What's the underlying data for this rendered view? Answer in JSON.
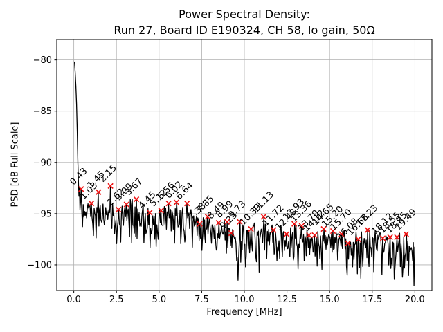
{
  "title": {
    "line1": "Power Spectral Density:",
    "line2": "Run 27, Board ID E190324, CH 58, lo gain, 50Ω"
  },
  "chart_data": {
    "type": "line",
    "title": "Power Spectral Density:\nRun 27, Board ID E190324, CH 58, lo gain, 50Ω",
    "xlabel": "Frequency [MHz]",
    "ylabel": "PSD [dB Full Scale]",
    "xlim": [
      -1,
      21
    ],
    "ylim": [
      -102.5,
      -78.0
    ],
    "grid": true,
    "legend": "none",
    "line_color": "#000000",
    "grid_color": "#b0b0b0",
    "marker": {
      "shape": "x",
      "color": "#ee1111"
    },
    "xticks": {
      "values": [
        0,
        2.5,
        5,
        7.5,
        10,
        12.5,
        15,
        17.5,
        20
      ],
      "labels": [
        "0.0",
        "2.5",
        "5.0",
        "7.5",
        "10.0",
        "12.5",
        "15.0",
        "17.5",
        "20.0"
      ]
    },
    "yticks": {
      "values": [
        -80,
        -85,
        -90,
        -95,
        -100
      ],
      "labels": [
        "−80",
        "−85",
        "−90",
        "−95",
        "−100"
      ]
    },
    "spike_head": [
      [
        0.04,
        -80.15
      ],
      [
        0.08,
        -81.2
      ],
      [
        0.12,
        -82.55
      ],
      [
        0.16,
        -84.3
      ],
      [
        0.2,
        -87.0
      ],
      [
        0.24,
        -90.0
      ],
      [
        0.27,
        -91.8
      ],
      [
        0.3,
        -93.3
      ],
      [
        0.33,
        -92.4
      ],
      [
        0.36,
        -94.6
      ],
      [
        0.4,
        -93.4
      ],
      [
        0.43,
        -92.6
      ]
    ],
    "trend": [
      [
        0.5,
        -94.6
      ],
      [
        1.5,
        -94.8
      ],
      [
        2.5,
        -95.0
      ],
      [
        3.5,
        -94.9
      ],
      [
        4.5,
        -95.4
      ],
      [
        5.5,
        -95.2
      ],
      [
        6.5,
        -95.3
      ],
      [
        7.5,
        -96.4
      ],
      [
        8.5,
        -96.6
      ],
      [
        9.5,
        -97.2
      ],
      [
        10.5,
        -97.0
      ],
      [
        11.5,
        -96.9
      ],
      [
        12.5,
        -97.2
      ],
      [
        13.5,
        -97.5
      ],
      [
        14.5,
        -97.4
      ],
      [
        15.5,
        -97.6
      ],
      [
        16.5,
        -98.0
      ],
      [
        17.5,
        -97.9
      ],
      [
        18.5,
        -98.0
      ],
      [
        19.5,
        -98.2
      ],
      [
        20.0,
        -98.6
      ]
    ],
    "noise": {
      "amplitude_up_db": 1.0,
      "amplitude_down_db": 2.6,
      "step_mhz": 0.04,
      "seed": 27
    },
    "forced_dips": [
      [
        9.62,
        -101.5
      ],
      [
        10.05,
        -100.2
      ],
      [
        13.15,
        -100.4
      ],
      [
        16.35,
        -100.2
      ],
      [
        19.28,
        -101.2
      ]
    ],
    "peaks": [
      {
        "label": "0.43",
        "f": 0.43,
        "psd_db": -92.6
      },
      {
        "label": "1.03",
        "f": 1.03,
        "psd_db": -94.0
      },
      {
        "label": "1.45",
        "f": 1.45,
        "psd_db": -92.9
      },
      {
        "label": "2.15",
        "f": 2.15,
        "psd_db": -92.3
      },
      {
        "label": "2.62",
        "f": 2.62,
        "psd_db": -94.6
      },
      {
        "label": "3.09",
        "f": 3.09,
        "psd_db": -94.1
      },
      {
        "label": "3.67",
        "f": 3.67,
        "psd_db": -93.6
      },
      {
        "label": "4.45",
        "f": 4.45,
        "psd_db": -94.9
      },
      {
        "label": "5.12",
        "f": 5.12,
        "psd_db": -94.7
      },
      {
        "label": "5.56",
        "f": 5.56,
        "psd_db": -94.0
      },
      {
        "label": "6.02",
        "f": 6.02,
        "psd_db": -93.9
      },
      {
        "label": "6.64",
        "f": 6.64,
        "psd_db": -94.0
      },
      {
        "label": "7.38",
        "f": 7.38,
        "psd_db": -96.0
      },
      {
        "label": "7.85",
        "f": 7.85,
        "psd_db": -95.3
      },
      {
        "label": "8.49",
        "f": 8.49,
        "psd_db": -95.9
      },
      {
        "label": "8.99",
        "f": 8.99,
        "psd_db": -95.8
      },
      {
        "label": "9.23",
        "f": 9.23,
        "psd_db": -96.9
      },
      {
        "label": "9.73",
        "f": 9.73,
        "psd_db": -95.8
      },
      {
        "label": "10.39",
        "f": 10.39,
        "psd_db": -96.5
      },
      {
        "label": "11.13",
        "f": 11.13,
        "psd_db": -95.3
      },
      {
        "label": "11.72",
        "f": 11.72,
        "psd_db": -96.6
      },
      {
        "label": "12.48",
        "f": 12.48,
        "psd_db": -97.0
      },
      {
        "label": "12.93",
        "f": 12.93,
        "psd_db": -96.0
      },
      {
        "label": "13.36",
        "f": 13.36,
        "psd_db": -96.2
      },
      {
        "label": "13.79",
        "f": 13.79,
        "psd_db": -97.1
      },
      {
        "label": "14.12",
        "f": 14.12,
        "psd_db": -97.1
      },
      {
        "label": "14.65",
        "f": 14.65,
        "psd_db": -96.5
      },
      {
        "label": "15.20",
        "f": 15.2,
        "psd_db": -96.7
      },
      {
        "label": "15.70",
        "f": 15.7,
        "psd_db": -97.0
      },
      {
        "label": "16.08",
        "f": 16.08,
        "psd_db": -97.9
      },
      {
        "label": "16.68",
        "f": 16.68,
        "psd_db": -97.5
      },
      {
        "label": "17.23",
        "f": 17.23,
        "psd_db": -96.6
      },
      {
        "label": "18.12",
        "f": 18.12,
        "psd_db": -97.4
      },
      {
        "label": "18.55",
        "f": 18.55,
        "psd_db": -97.3
      },
      {
        "label": "18.95",
        "f": 18.95,
        "psd_db": -97.3
      },
      {
        "label": "19.49",
        "f": 19.49,
        "psd_db": -97.0
      }
    ]
  }
}
